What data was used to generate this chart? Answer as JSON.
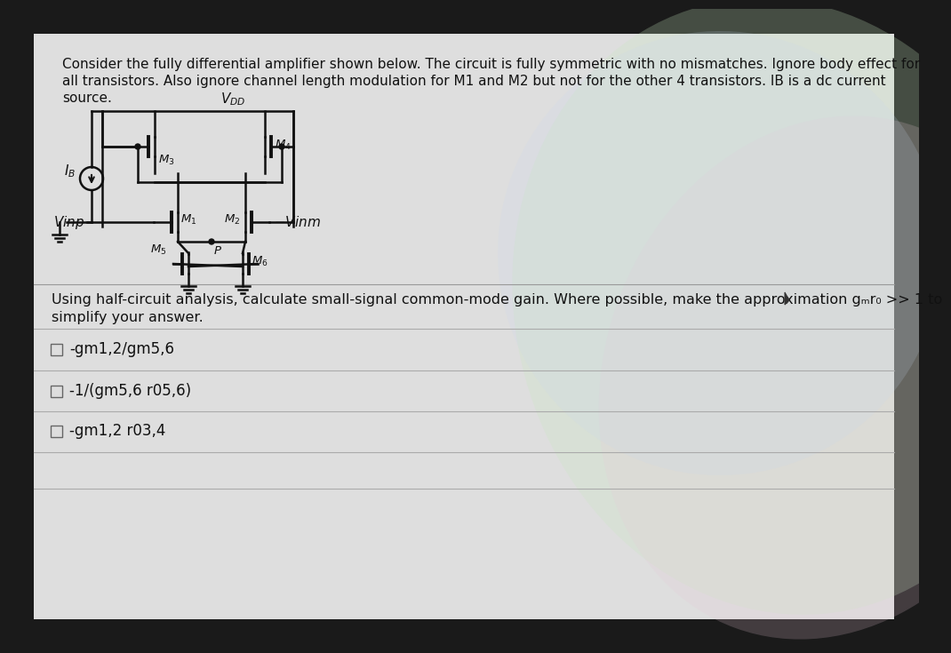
{
  "bg_outer": "#1a1a1a",
  "bg_page": "#dedede",
  "text_color": "#111111",
  "circuit_color": "#111111",
  "problem_line1": "Consider the fully differential amplifier shown below. The circuit is fully symmetric with no mismatches. Ignore body effect for",
  "problem_line2": "all transistors. Also ignore channel length modulation for M1 and M2 but not for the other 4 transistors. IB is a dc current",
  "problem_line3": "source.",
  "question_line1": "Using half-circuit analysis, calculate small-signal common-mode gain. Where possible, make the approximation gₘr₀ >> 1 to",
  "question_line2": "simplify your answer.",
  "choices": [
    "-gm1,2/gm5,6",
    "-1/(gm5,6 r05,6)",
    "-gm1,2 r03,4"
  ],
  "font_body": 11.0,
  "font_choice": 12.0,
  "shimmer_colors": [
    "#c8e8c0",
    "#e8c8d8",
    "#c8d8f0"
  ],
  "shimmer_alpha": [
    0.25,
    0.2,
    0.18
  ]
}
